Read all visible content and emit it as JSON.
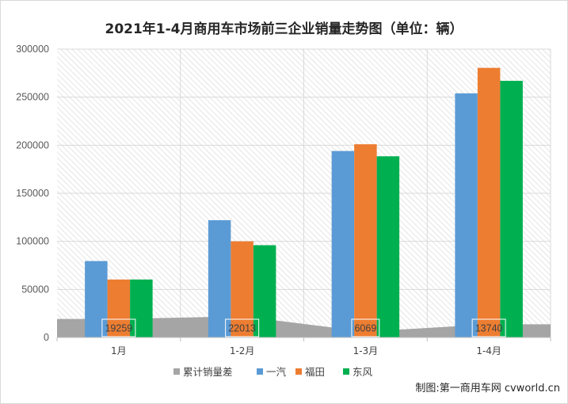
{
  "chart_data": {
    "type": "bar",
    "title": "2021年1-4月商用车市场前三企业销量走势图（单位：辆）",
    "categories": [
      "1月",
      "1-2月",
      "1-3月",
      "1-4月"
    ],
    "ylim": [
      0,
      300000
    ],
    "yticks": [
      0,
      50000,
      100000,
      150000,
      200000,
      250000,
      300000
    ],
    "grid": true,
    "legend_position": "bottom",
    "series": [
      {
        "name": "累计销量差",
        "kind": "area",
        "color": "#a5a5a5",
        "values": [
          19259,
          22013,
          6069,
          13740
        ],
        "labels": [
          "19259",
          "22013",
          "6069",
          "13740"
        ]
      },
      {
        "name": "一汽",
        "kind": "bar",
        "color": "#5b9bd5",
        "values": [
          79500,
          122000,
          194000,
          254000
        ]
      },
      {
        "name": "福田",
        "kind": "bar",
        "color": "#ed7d31",
        "values": [
          60300,
          100000,
          201000,
          280500
        ]
      },
      {
        "name": "东风",
        "kind": "bar",
        "color": "#00b050",
        "values": [
          60300,
          96000,
          188500,
          267000
        ]
      }
    ]
  },
  "credit": "制图:第一商用车网 cvworld.cn"
}
